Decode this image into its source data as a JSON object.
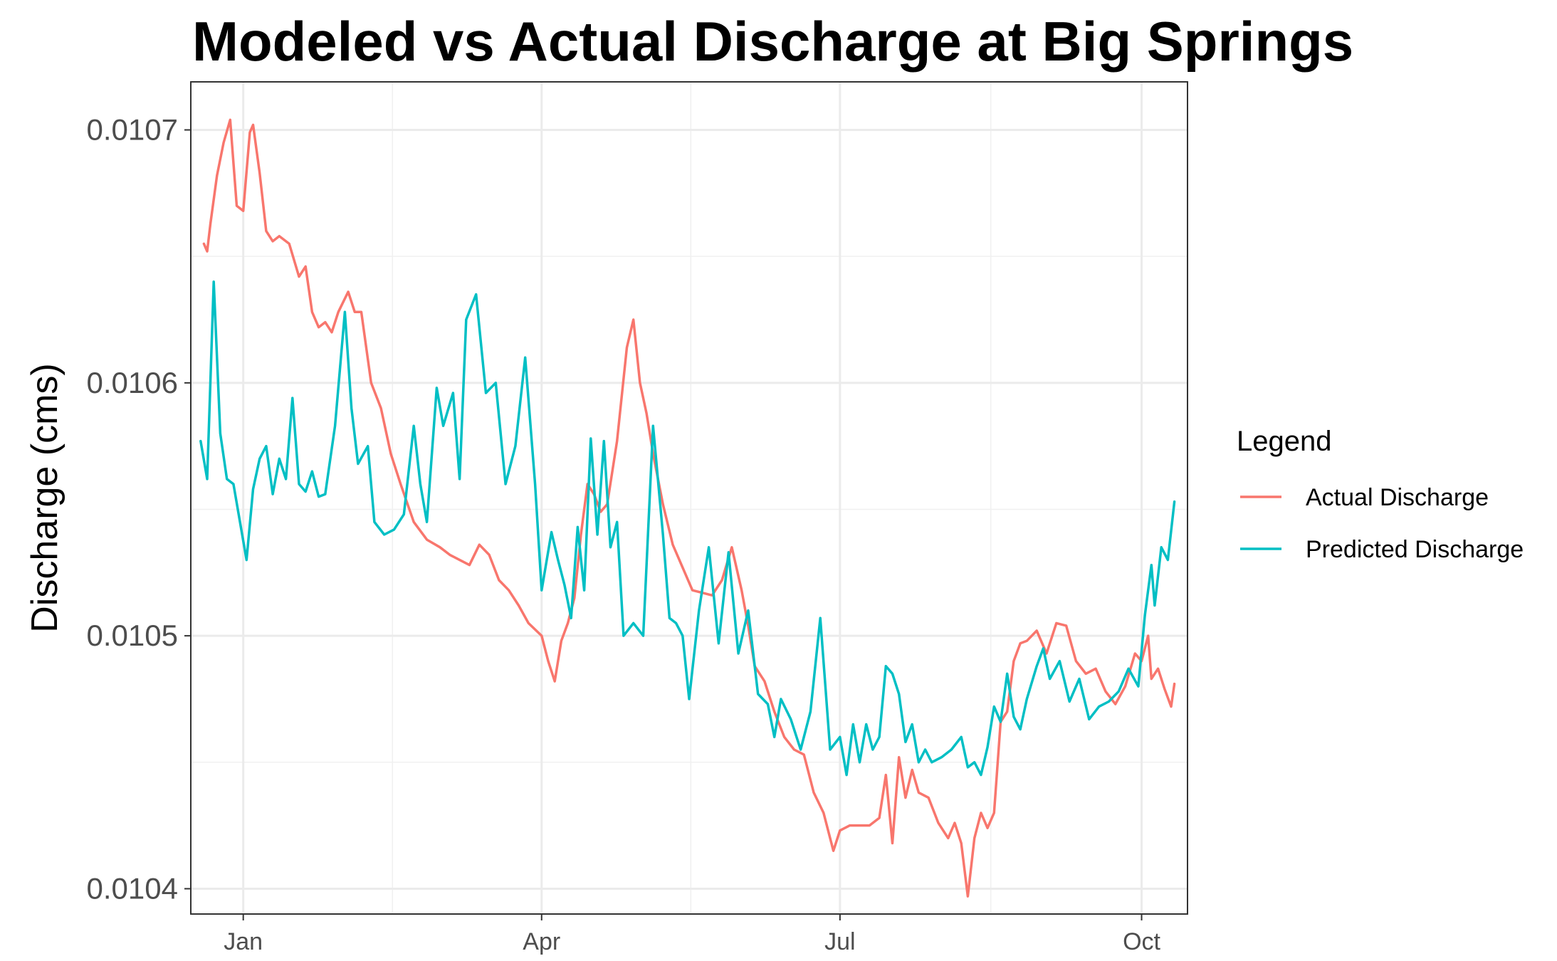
{
  "chart_data": {
    "type": "line",
    "title": "Modeled vs Actual Discharge at Big Springs",
    "xlabel": "",
    "ylabel": "Discharge (cms)",
    "xlim": [
      "2019-12-16",
      "2020-10-15"
    ],
    "ylim": [
      0.01039,
      0.010719
    ],
    "x_ticks": [
      {
        "label": "Jan",
        "date": "2020-01-01"
      },
      {
        "label": "Apr",
        "date": "2020-04-01"
      },
      {
        "label": "Jul",
        "date": "2020-07-01"
      },
      {
        "label": "Oct",
        "date": "2020-10-01"
      }
    ],
    "y_ticks": [
      {
        "label": "0.0104",
        "value": 0.0104
      },
      {
        "label": "0.0105",
        "value": 0.0105
      },
      {
        "label": "0.0106",
        "value": 0.0106
      },
      {
        "label": "0.0107",
        "value": 0.0107
      }
    ],
    "grid": true,
    "legend": {
      "title": "Legend",
      "position": "right"
    },
    "series": [
      {
        "name": "Actual Discharge",
        "color": "#F8766D",
        "points": [
          [
            "2019-12-20",
            0.010655
          ],
          [
            "2019-12-21",
            0.010652
          ],
          [
            "2019-12-22",
            0.010663
          ],
          [
            "2019-12-24",
            0.010682
          ],
          [
            "2019-12-26",
            0.010695
          ],
          [
            "2019-12-28",
            0.010704
          ],
          [
            "2019-12-30",
            0.01067
          ],
          [
            "2020-01-01",
            0.010668
          ],
          [
            "2020-01-03",
            0.010699
          ],
          [
            "2020-01-04",
            0.010702
          ],
          [
            "2020-01-06",
            0.010683
          ],
          [
            "2020-01-08",
            0.01066
          ],
          [
            "2020-01-10",
            0.010656
          ],
          [
            "2020-01-12",
            0.010658
          ],
          [
            "2020-01-15",
            0.010655
          ],
          [
            "2020-01-18",
            0.010642
          ],
          [
            "2020-01-20",
            0.010646
          ],
          [
            "2020-01-22",
            0.010628
          ],
          [
            "2020-01-24",
            0.010622
          ],
          [
            "2020-01-26",
            0.010624
          ],
          [
            "2020-01-28",
            0.01062
          ],
          [
            "2020-01-30",
            0.010628
          ],
          [
            "2020-02-02",
            0.010636
          ],
          [
            "2020-02-04",
            0.010628
          ],
          [
            "2020-02-06",
            0.010628
          ],
          [
            "2020-02-09",
            0.0106
          ],
          [
            "2020-02-12",
            0.01059
          ],
          [
            "2020-02-15",
            0.010572
          ],
          [
            "2020-02-18",
            0.01056
          ],
          [
            "2020-02-22",
            0.010545
          ],
          [
            "2020-02-26",
            0.010538
          ],
          [
            "2020-03-01",
            0.010535
          ],
          [
            "2020-03-04",
            0.010532
          ],
          [
            "2020-03-07",
            0.01053
          ],
          [
            "2020-03-10",
            0.010528
          ],
          [
            "2020-03-13",
            0.010536
          ],
          [
            "2020-03-16",
            0.010532
          ],
          [
            "2020-03-19",
            0.010522
          ],
          [
            "2020-03-22",
            0.010518
          ],
          [
            "2020-03-25",
            0.010512
          ],
          [
            "2020-03-28",
            0.010505
          ],
          [
            "2020-04-01",
            0.0105
          ],
          [
            "2020-04-03",
            0.01049
          ],
          [
            "2020-04-05",
            0.010482
          ],
          [
            "2020-04-07",
            0.010498
          ],
          [
            "2020-04-09",
            0.010505
          ],
          [
            "2020-04-11",
            0.010515
          ],
          [
            "2020-04-13",
            0.01054
          ],
          [
            "2020-04-15",
            0.01056
          ],
          [
            "2020-04-17",
            0.010556
          ],
          [
            "2020-04-19",
            0.010549
          ],
          [
            "2020-04-21",
            0.010552
          ],
          [
            "2020-04-24",
            0.010577
          ],
          [
            "2020-04-27",
            0.010614
          ],
          [
            "2020-04-29",
            0.010625
          ],
          [
            "2020-05-01",
            0.0106
          ],
          [
            "2020-05-03",
            0.010588
          ],
          [
            "2020-05-05",
            0.010572
          ],
          [
            "2020-05-08",
            0.010552
          ],
          [
            "2020-05-11",
            0.010536
          ],
          [
            "2020-05-14",
            0.010527
          ],
          [
            "2020-05-17",
            0.010518
          ],
          [
            "2020-05-20",
            0.010517
          ],
          [
            "2020-05-23",
            0.010516
          ],
          [
            "2020-05-26",
            0.010522
          ],
          [
            "2020-05-29",
            0.010535
          ],
          [
            "2020-06-01",
            0.010518
          ],
          [
            "2020-06-03",
            0.010504
          ],
          [
            "2020-06-05",
            0.010488
          ],
          [
            "2020-06-08",
            0.010482
          ],
          [
            "2020-06-11",
            0.01047
          ],
          [
            "2020-06-14",
            0.01046
          ],
          [
            "2020-06-17",
            0.010455
          ],
          [
            "2020-06-20",
            0.010453
          ],
          [
            "2020-06-23",
            0.010438
          ],
          [
            "2020-06-26",
            0.01043
          ],
          [
            "2020-06-29",
            0.010415
          ],
          [
            "2020-07-01",
            0.010423
          ],
          [
            "2020-07-04",
            0.010425
          ],
          [
            "2020-07-07",
            0.010425
          ],
          [
            "2020-07-10",
            0.010425
          ],
          [
            "2020-07-13",
            0.010428
          ],
          [
            "2020-07-15",
            0.010445
          ],
          [
            "2020-07-17",
            0.010418
          ],
          [
            "2020-07-19",
            0.010452
          ],
          [
            "2020-07-21",
            0.010436
          ],
          [
            "2020-07-23",
            0.010447
          ],
          [
            "2020-07-25",
            0.010438
          ],
          [
            "2020-07-28",
            0.010436
          ],
          [
            "2020-07-31",
            0.010426
          ],
          [
            "2020-08-03",
            0.01042
          ],
          [
            "2020-08-05",
            0.010426
          ],
          [
            "2020-08-07",
            0.010418
          ],
          [
            "2020-08-09",
            0.010397
          ],
          [
            "2020-08-11",
            0.01042
          ],
          [
            "2020-08-13",
            0.01043
          ],
          [
            "2020-08-15",
            0.010424
          ],
          [
            "2020-08-17",
            0.01043
          ],
          [
            "2020-08-19",
            0.010466
          ],
          [
            "2020-08-21",
            0.01047
          ],
          [
            "2020-08-23",
            0.01049
          ],
          [
            "2020-08-25",
            0.010497
          ],
          [
            "2020-08-27",
            0.010498
          ],
          [
            "2020-08-30",
            0.010502
          ],
          [
            "2020-09-02",
            0.010493
          ],
          [
            "2020-09-05",
            0.010505
          ],
          [
            "2020-09-08",
            0.010504
          ],
          [
            "2020-09-11",
            0.01049
          ],
          [
            "2020-09-14",
            0.010485
          ],
          [
            "2020-09-17",
            0.010487
          ],
          [
            "2020-09-20",
            0.010478
          ],
          [
            "2020-09-23",
            0.010473
          ],
          [
            "2020-09-26",
            0.01048
          ],
          [
            "2020-09-29",
            0.010493
          ],
          [
            "2020-10-01",
            0.01049
          ],
          [
            "2020-10-03",
            0.0105
          ],
          [
            "2020-10-04",
            0.010483
          ],
          [
            "2020-10-06",
            0.010487
          ],
          [
            "2020-10-08",
            0.010479
          ],
          [
            "2020-10-10",
            0.010472
          ],
          [
            "2020-10-11",
            0.010481
          ]
        ]
      },
      {
        "name": "Predicted Discharge",
        "color": "#00BFC4",
        "points": [
          [
            "2019-12-19",
            0.010577
          ],
          [
            "2019-12-21",
            0.010562
          ],
          [
            "2019-12-23",
            0.01064
          ],
          [
            "2019-12-25",
            0.01058
          ],
          [
            "2019-12-27",
            0.010562
          ],
          [
            "2019-12-29",
            0.01056
          ],
          [
            "2019-12-31",
            0.010545
          ],
          [
            "2020-01-02",
            0.01053
          ],
          [
            "2020-01-04",
            0.010558
          ],
          [
            "2020-01-06",
            0.01057
          ],
          [
            "2020-01-08",
            0.010575
          ],
          [
            "2020-01-10",
            0.010556
          ],
          [
            "2020-01-12",
            0.01057
          ],
          [
            "2020-01-14",
            0.010562
          ],
          [
            "2020-01-16",
            0.010594
          ],
          [
            "2020-01-18",
            0.01056
          ],
          [
            "2020-01-20",
            0.010557
          ],
          [
            "2020-01-22",
            0.010565
          ],
          [
            "2020-01-24",
            0.010555
          ],
          [
            "2020-01-26",
            0.010556
          ],
          [
            "2020-01-29",
            0.010583
          ],
          [
            "2020-02-01",
            0.010628
          ],
          [
            "2020-02-03",
            0.01059
          ],
          [
            "2020-02-05",
            0.010568
          ],
          [
            "2020-02-08",
            0.010575
          ],
          [
            "2020-02-10",
            0.010545
          ],
          [
            "2020-02-13",
            0.01054
          ],
          [
            "2020-02-16",
            0.010542
          ],
          [
            "2020-02-19",
            0.010548
          ],
          [
            "2020-02-22",
            0.010583
          ],
          [
            "2020-02-24",
            0.01056
          ],
          [
            "2020-02-26",
            0.010545
          ],
          [
            "2020-02-29",
            0.010598
          ],
          [
            "2020-03-02",
            0.010583
          ],
          [
            "2020-03-05",
            0.010596
          ],
          [
            "2020-03-07",
            0.010562
          ],
          [
            "2020-03-09",
            0.010625
          ],
          [
            "2020-03-12",
            0.010635
          ],
          [
            "2020-03-15",
            0.010596
          ],
          [
            "2020-03-18",
            0.0106
          ],
          [
            "2020-03-21",
            0.01056
          ],
          [
            "2020-03-24",
            0.010575
          ],
          [
            "2020-03-27",
            0.01061
          ],
          [
            "2020-03-30",
            0.01056
          ],
          [
            "2020-04-01",
            0.010518
          ],
          [
            "2020-04-04",
            0.010541
          ],
          [
            "2020-04-06",
            0.01053
          ],
          [
            "2020-04-08",
            0.01052
          ],
          [
            "2020-04-10",
            0.010507
          ],
          [
            "2020-04-12",
            0.010543
          ],
          [
            "2020-04-14",
            0.010518
          ],
          [
            "2020-04-16",
            0.010578
          ],
          [
            "2020-04-18",
            0.01054
          ],
          [
            "2020-04-20",
            0.010577
          ],
          [
            "2020-04-22",
            0.010535
          ],
          [
            "2020-04-24",
            0.010545
          ],
          [
            "2020-04-26",
            0.0105
          ],
          [
            "2020-04-29",
            0.010505
          ],
          [
            "2020-05-02",
            0.0105
          ],
          [
            "2020-05-05",
            0.010583
          ],
          [
            "2020-05-08",
            0.01054
          ],
          [
            "2020-05-10",
            0.010507
          ],
          [
            "2020-05-12",
            0.010505
          ],
          [
            "2020-05-14",
            0.0105
          ],
          [
            "2020-05-16",
            0.010475
          ],
          [
            "2020-05-19",
            0.01051
          ],
          [
            "2020-05-22",
            0.010535
          ],
          [
            "2020-05-25",
            0.010497
          ],
          [
            "2020-05-28",
            0.010533
          ],
          [
            "2020-05-31",
            0.010493
          ],
          [
            "2020-06-03",
            0.01051
          ],
          [
            "2020-06-06",
            0.010477
          ],
          [
            "2020-06-09",
            0.010473
          ],
          [
            "2020-06-11",
            0.01046
          ],
          [
            "2020-06-13",
            0.010475
          ],
          [
            "2020-06-16",
            0.010467
          ],
          [
            "2020-06-19",
            0.010455
          ],
          [
            "2020-06-22",
            0.01047
          ],
          [
            "2020-06-25",
            0.010507
          ],
          [
            "2020-06-28",
            0.010455
          ],
          [
            "2020-07-01",
            0.01046
          ],
          [
            "2020-07-03",
            0.010445
          ],
          [
            "2020-07-05",
            0.010465
          ],
          [
            "2020-07-07",
            0.01045
          ],
          [
            "2020-07-09",
            0.010465
          ],
          [
            "2020-07-11",
            0.010455
          ],
          [
            "2020-07-13",
            0.01046
          ],
          [
            "2020-07-15",
            0.010488
          ],
          [
            "2020-07-17",
            0.010485
          ],
          [
            "2020-07-19",
            0.010477
          ],
          [
            "2020-07-21",
            0.010458
          ],
          [
            "2020-07-23",
            0.010465
          ],
          [
            "2020-07-25",
            0.01045
          ],
          [
            "2020-07-27",
            0.010455
          ],
          [
            "2020-07-29",
            0.01045
          ],
          [
            "2020-08-01",
            0.010452
          ],
          [
            "2020-08-04",
            0.010455
          ],
          [
            "2020-08-07",
            0.01046
          ],
          [
            "2020-08-09",
            0.010448
          ],
          [
            "2020-08-11",
            0.01045
          ],
          [
            "2020-08-13",
            0.010445
          ],
          [
            "2020-08-15",
            0.010456
          ],
          [
            "2020-08-17",
            0.010472
          ],
          [
            "2020-08-19",
            0.010466
          ],
          [
            "2020-08-21",
            0.010485
          ],
          [
            "2020-08-23",
            0.010468
          ],
          [
            "2020-08-25",
            0.010463
          ],
          [
            "2020-08-27",
            0.010475
          ],
          [
            "2020-08-30",
            0.010488
          ],
          [
            "2020-09-01",
            0.010495
          ],
          [
            "2020-09-03",
            0.010483
          ],
          [
            "2020-09-06",
            0.01049
          ],
          [
            "2020-09-09",
            0.010474
          ],
          [
            "2020-09-12",
            0.010483
          ],
          [
            "2020-09-15",
            0.010467
          ],
          [
            "2020-09-18",
            0.010472
          ],
          [
            "2020-09-21",
            0.010474
          ],
          [
            "2020-09-24",
            0.010478
          ],
          [
            "2020-09-27",
            0.010487
          ],
          [
            "2020-09-30",
            0.01048
          ],
          [
            "2020-10-02",
            0.010508
          ],
          [
            "2020-10-04",
            0.010528
          ],
          [
            "2020-10-05",
            0.010512
          ],
          [
            "2020-10-07",
            0.010535
          ],
          [
            "2020-10-09",
            0.01053
          ],
          [
            "2020-10-11",
            0.010553
          ]
        ]
      }
    ]
  }
}
